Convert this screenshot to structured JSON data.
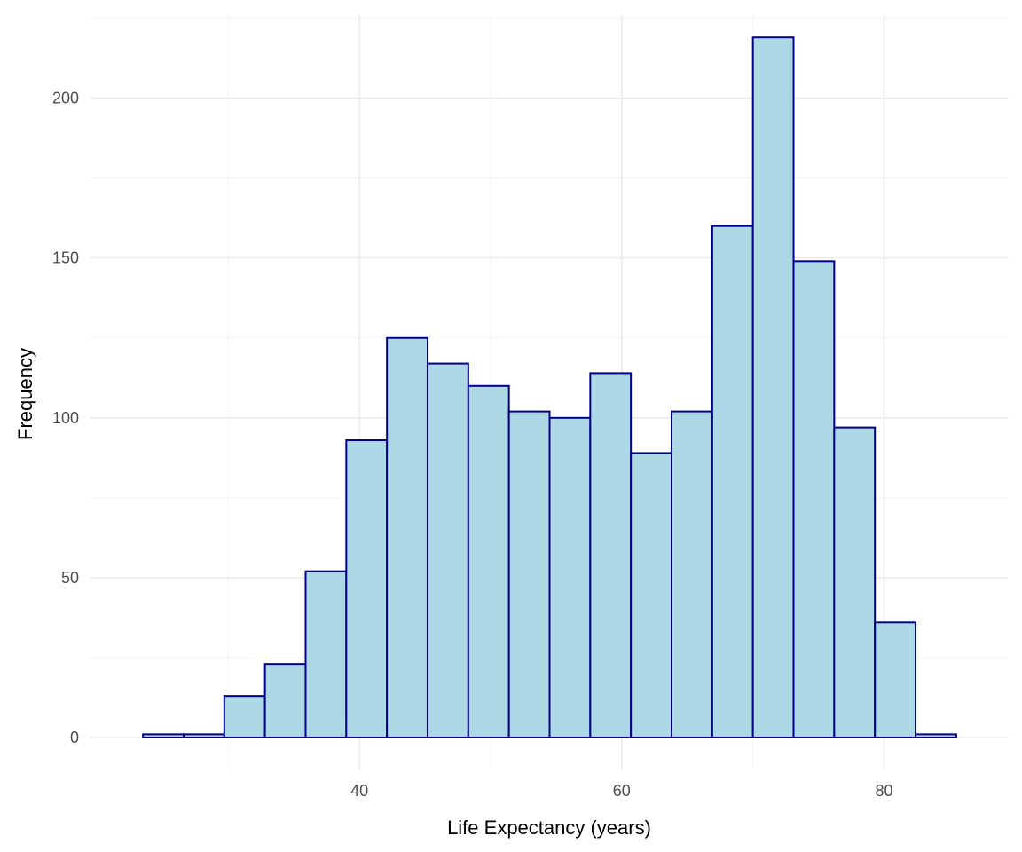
{
  "chart_data": {
    "type": "bar",
    "title": "",
    "xlabel": "Life Expectancy (years)",
    "ylabel": "Frequency",
    "xlim": [
      19.5,
      89.5
    ],
    "ylim": [
      -10,
      226
    ],
    "x_ticks": [
      40,
      60,
      80
    ],
    "x_tick_labels": [
      "40",
      "60",
      "80"
    ],
    "x_minor_gridlines": [
      30,
      50,
      70
    ],
    "y_ticks": [
      0,
      50,
      100,
      150,
      200
    ],
    "y_tick_labels": [
      "0",
      "50",
      "100",
      "150",
      "200"
    ],
    "y_minor_gridlines": [
      25,
      75,
      125,
      175,
      225
    ],
    "bin_width": 3.1,
    "bins": [
      {
        "x_start": 23.5,
        "x_end": 26.6,
        "count": 1
      },
      {
        "x_start": 26.6,
        "x_end": 29.7,
        "count": 1
      },
      {
        "x_start": 29.7,
        "x_end": 32.8,
        "count": 13
      },
      {
        "x_start": 32.8,
        "x_end": 35.9,
        "count": 23
      },
      {
        "x_start": 35.9,
        "x_end": 39.0,
        "count": 52
      },
      {
        "x_start": 39.0,
        "x_end": 42.1,
        "count": 93
      },
      {
        "x_start": 42.1,
        "x_end": 45.2,
        "count": 125
      },
      {
        "x_start": 45.2,
        "x_end": 48.3,
        "count": 117
      },
      {
        "x_start": 48.3,
        "x_end": 51.4,
        "count": 110
      },
      {
        "x_start": 51.4,
        "x_end": 54.5,
        "count": 102
      },
      {
        "x_start": 54.5,
        "x_end": 57.6,
        "count": 100
      },
      {
        "x_start": 57.6,
        "x_end": 60.7,
        "count": 114
      },
      {
        "x_start": 60.7,
        "x_end": 63.8,
        "count": 89
      },
      {
        "x_start": 63.8,
        "x_end": 66.9,
        "count": 102
      },
      {
        "x_start": 66.9,
        "x_end": 70.0,
        "count": 160
      },
      {
        "x_start": 70.0,
        "x_end": 73.1,
        "count": 219
      },
      {
        "x_start": 73.1,
        "x_end": 76.2,
        "count": 149
      },
      {
        "x_start": 76.2,
        "x_end": 79.3,
        "count": 97
      },
      {
        "x_start": 79.3,
        "x_end": 82.4,
        "count": 36
      },
      {
        "x_start": 82.4,
        "x_end": 85.5,
        "count": 1
      }
    ],
    "grid": true,
    "legend": "none",
    "colors": {
      "bar_fill": "#add8e6",
      "bar_stroke": "#00008b",
      "grid_major": "#ebebeb",
      "grid_minor": "#f5f5f5",
      "background": "#ffffff"
    }
  }
}
